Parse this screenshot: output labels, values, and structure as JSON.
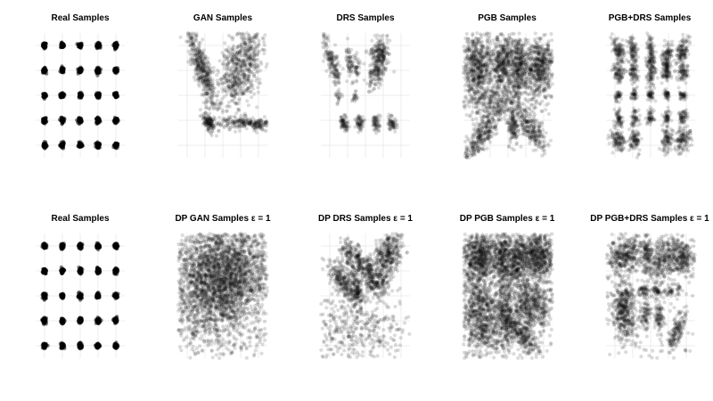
{
  "figure": {
    "background": "#ffffff",
    "point_color": "#000000",
    "grid_color": "#e6e6e6"
  },
  "chart_data": [
    {
      "type": "scatter",
      "title": "Real Samples",
      "grid": true,
      "axis_ticks_visible": false,
      "xlim": [
        -2.5,
        2.5
      ],
      "ylim": [
        -2.5,
        2.5
      ],
      "points": "5x5 grid of tight gaussian clusters at x,y in {-2,-1,0,1,2}",
      "clusters": [
        {
          "x": -2,
          "y": 2,
          "spread": 0.05,
          "n": 60
        },
        {
          "x": -1,
          "y": 2,
          "spread": 0.05,
          "n": 60
        },
        {
          "x": 0,
          "y": 2,
          "spread": 0.05,
          "n": 60
        },
        {
          "x": 1,
          "y": 2,
          "spread": 0.05,
          "n": 60
        },
        {
          "x": 2,
          "y": 2,
          "spread": 0.05,
          "n": 60
        },
        {
          "x": -2,
          "y": 1,
          "spread": 0.05,
          "n": 60
        },
        {
          "x": -1,
          "y": 1,
          "spread": 0.05,
          "n": 60
        },
        {
          "x": 0,
          "y": 1,
          "spread": 0.05,
          "n": 60
        },
        {
          "x": 1,
          "y": 1,
          "spread": 0.05,
          "n": 60
        },
        {
          "x": 2,
          "y": 1,
          "spread": 0.05,
          "n": 60
        },
        {
          "x": -2,
          "y": 0,
          "spread": 0.05,
          "n": 60
        },
        {
          "x": -1,
          "y": 0,
          "spread": 0.05,
          "n": 60
        },
        {
          "x": 0,
          "y": 0,
          "spread": 0.05,
          "n": 60
        },
        {
          "x": 1,
          "y": 0,
          "spread": 0.05,
          "n": 60
        },
        {
          "x": 2,
          "y": 0,
          "spread": 0.05,
          "n": 60
        },
        {
          "x": -2,
          "y": -1,
          "spread": 0.05,
          "n": 60
        },
        {
          "x": -1,
          "y": -1,
          "spread": 0.05,
          "n": 60
        },
        {
          "x": 0,
          "y": -1,
          "spread": 0.05,
          "n": 60
        },
        {
          "x": 1,
          "y": -1,
          "spread": 0.05,
          "n": 60
        },
        {
          "x": 2,
          "y": -1,
          "spread": 0.05,
          "n": 60
        },
        {
          "x": -2,
          "y": -2,
          "spread": 0.05,
          "n": 60
        },
        {
          "x": -1,
          "y": -2,
          "spread": 0.05,
          "n": 60
        },
        {
          "x": 0,
          "y": -2,
          "spread": 0.05,
          "n": 60
        },
        {
          "x": 1,
          "y": -2,
          "spread": 0.05,
          "n": 60
        },
        {
          "x": 2,
          "y": -2,
          "spread": 0.05,
          "n": 60
        }
      ]
    },
    {
      "type": "scatter",
      "title": "GAN Samples",
      "grid": true,
      "axis_ticks_visible": false,
      "xlim": [
        -2.5,
        2.5
      ],
      "ylim": [
        -2.5,
        2.5
      ],
      "clusters": [
        {
          "x": -1.2,
          "y": 1.1,
          "sx": 0.22,
          "sy": 1.0,
          "rot": 0.42,
          "n": 450
        },
        {
          "x": 1.0,
          "y": 1.2,
          "sx": 0.5,
          "sy": 0.95,
          "rot": -0.55,
          "n": 650
        },
        {
          "x": -0.8,
          "y": -1.1,
          "sx": 0.12,
          "sy": 0.22,
          "rot": 0.6,
          "n": 120
        },
        {
          "x": 1.6,
          "y": -1.15,
          "sx": 0.9,
          "sy": 0.12,
          "rot": -0.05,
          "n": 260
        }
      ]
    },
    {
      "type": "scatter",
      "title": "DRS Samples",
      "grid": true,
      "axis_ticks_visible": false,
      "xlim": [
        -2.5,
        2.5
      ],
      "ylim": [
        -2.5,
        2.5
      ],
      "clusters": [
        {
          "x": -2.0,
          "y": 1.6,
          "sx": 0.15,
          "sy": 0.45,
          "rot": 0.4,
          "n": 120
        },
        {
          "x": -1.6,
          "y": 0.8,
          "sx": 0.1,
          "sy": 0.25,
          "rot": 0.2,
          "n": 40
        },
        {
          "x": -0.9,
          "y": 1.3,
          "sx": 0.12,
          "sy": 0.35,
          "rot": 0.2,
          "n": 60
        },
        {
          "x": -0.5,
          "y": 1.1,
          "sx": 0.1,
          "sy": 0.3,
          "rot": 0.1,
          "n": 40
        },
        {
          "x": 0.8,
          "y": 1.7,
          "sx": 0.25,
          "sy": 0.3,
          "rot": -0.5,
          "n": 180
        },
        {
          "x": 0.6,
          "y": 0.9,
          "sx": 0.2,
          "sy": 0.35,
          "rot": -0.6,
          "n": 140
        },
        {
          "x": -1.5,
          "y": -0.1,
          "sx": 0.08,
          "sy": 0.12,
          "rot": 0,
          "n": 20
        },
        {
          "x": -0.6,
          "y": -0.1,
          "sx": 0.08,
          "sy": 0.12,
          "rot": 0,
          "n": 20
        },
        {
          "x": -1.2,
          "y": -1.1,
          "sx": 0.12,
          "sy": 0.15,
          "rot": 0.2,
          "n": 70
        },
        {
          "x": -0.3,
          "y": -1.1,
          "sx": 0.12,
          "sy": 0.15,
          "rot": 0.2,
          "n": 60
        },
        {
          "x": 0.6,
          "y": -1.1,
          "sx": 0.12,
          "sy": 0.15,
          "rot": 0.2,
          "n": 60
        },
        {
          "x": 1.5,
          "y": -1.1,
          "sx": 0.12,
          "sy": 0.15,
          "rot": 0.2,
          "n": 60
        }
      ]
    },
    {
      "type": "scatter",
      "title": "PGB Samples",
      "grid": true,
      "axis_ticks_visible": false,
      "xlim": [
        -2.5,
        2.5
      ],
      "ylim": [
        -2.5,
        2.5
      ],
      "clusters": [
        {
          "x": -1.7,
          "y": 1.1,
          "sx": 0.5,
          "sy": 0.75,
          "rot": 0.1,
          "n": 700
        },
        {
          "x": -0.3,
          "y": 1.2,
          "sx": 0.28,
          "sy": 0.6,
          "rot": 0,
          "n": 400
        },
        {
          "x": 0.6,
          "y": 1.2,
          "sx": 0.28,
          "sy": 0.6,
          "rot": 0,
          "n": 400
        },
        {
          "x": 1.8,
          "y": 1.2,
          "sx": 0.45,
          "sy": 0.6,
          "rot": -0.2,
          "n": 600
        },
        {
          "x": -0.6,
          "y": -0.3,
          "sx": 1.6,
          "sy": 0.35,
          "rot": 0,
          "n": 300
        },
        {
          "x": -1.4,
          "y": -1.5,
          "sx": 1.0,
          "sy": 0.25,
          "rot": 0.8,
          "n": 400
        },
        {
          "x": 1.2,
          "y": -1.3,
          "sx": 0.6,
          "sy": 0.25,
          "rot": -0.8,
          "n": 260
        },
        {
          "x": 0.3,
          "y": -1.3,
          "sx": 0.15,
          "sy": 0.35,
          "rot": 0,
          "n": 120
        }
      ]
    },
    {
      "type": "scatter",
      "title": "PGB+DRS Samples",
      "grid": true,
      "axis_ticks_visible": false,
      "xlim": [
        -2.5,
        2.5
      ],
      "ylim": [
        -2.5,
        2.5
      ],
      "clusters": [
        {
          "x": -1.8,
          "y": 1.8,
          "sx": 0.15,
          "sy": 0.3,
          "rot": 0.4,
          "n": 120
        },
        {
          "x": -1.0,
          "y": 1.8,
          "sx": 0.12,
          "sy": 0.3,
          "rot": 0.2,
          "n": 100
        },
        {
          "x": 0.0,
          "y": 1.3,
          "sx": 0.12,
          "sy": 0.6,
          "rot": 0,
          "n": 200
        },
        {
          "x": 0.9,
          "y": 1.5,
          "sx": 0.15,
          "sy": 0.3,
          "rot": -0.3,
          "n": 120
        },
        {
          "x": 1.8,
          "y": 1.8,
          "sx": 0.15,
          "sy": 0.3,
          "rot": -0.5,
          "n": 120
        },
        {
          "x": -1.8,
          "y": 0.9,
          "sx": 0.15,
          "sy": 0.2,
          "rot": 0.5,
          "n": 80
        },
        {
          "x": -1.0,
          "y": 0.9,
          "sx": 0.12,
          "sy": 0.2,
          "rot": 0.3,
          "n": 70
        },
        {
          "x": 0.9,
          "y": 0.9,
          "sx": 0.12,
          "sy": 0.2,
          "rot": -0.3,
          "n": 70
        },
        {
          "x": 1.8,
          "y": 0.9,
          "sx": 0.15,
          "sy": 0.2,
          "rot": -0.5,
          "n": 80
        },
        {
          "x": -1.8,
          "y": 0.0,
          "sx": 0.1,
          "sy": 0.1,
          "rot": 0,
          "n": 40
        },
        {
          "x": -0.9,
          "y": 0.0,
          "sx": 0.1,
          "sy": 0.1,
          "rot": 0,
          "n": 40
        },
        {
          "x": 0.0,
          "y": 0.0,
          "sx": 0.1,
          "sy": 0.1,
          "rot": 0,
          "n": 40
        },
        {
          "x": 0.9,
          "y": 0.0,
          "sx": 0.1,
          "sy": 0.1,
          "rot": 0,
          "n": 40
        },
        {
          "x": 1.8,
          "y": 0.0,
          "sx": 0.1,
          "sy": 0.1,
          "rot": 0,
          "n": 40
        },
        {
          "x": -1.8,
          "y": -0.9,
          "sx": 0.12,
          "sy": 0.18,
          "rot": 0.3,
          "n": 60
        },
        {
          "x": -0.9,
          "y": -0.9,
          "sx": 0.1,
          "sy": 0.15,
          "rot": 0,
          "n": 50
        },
        {
          "x": 0.0,
          "y": -0.9,
          "sx": 0.1,
          "sy": 0.15,
          "rot": 0,
          "n": 50
        },
        {
          "x": 0.9,
          "y": -0.9,
          "sx": 0.1,
          "sy": 0.15,
          "rot": 0,
          "n": 50
        },
        {
          "x": 1.8,
          "y": -0.9,
          "sx": 0.12,
          "sy": 0.18,
          "rot": -0.3,
          "n": 60
        },
        {
          "x": -1.8,
          "y": -1.8,
          "sx": 0.2,
          "sy": 0.25,
          "rot": 0.6,
          "n": 120
        },
        {
          "x": -0.9,
          "y": -1.8,
          "sx": 0.15,
          "sy": 0.25,
          "rot": 0.3,
          "n": 90
        },
        {
          "x": 0.9,
          "y": -1.8,
          "sx": 0.15,
          "sy": 0.25,
          "rot": -0.3,
          "n": 90
        },
        {
          "x": 1.8,
          "y": -1.8,
          "sx": 0.2,
          "sy": 0.25,
          "rot": -0.6,
          "n": 120
        }
      ]
    },
    {
      "type": "scatter",
      "title": "Real Samples",
      "grid": true,
      "axis_ticks_visible": false,
      "xlim": [
        -2.5,
        2.5
      ],
      "ylim": [
        -2.5,
        2.5
      ],
      "clusters": [
        {
          "x": -2,
          "y": 2,
          "spread": 0.05,
          "n": 60
        },
        {
          "x": -1,
          "y": 2,
          "spread": 0.05,
          "n": 60
        },
        {
          "x": 0,
          "y": 2,
          "spread": 0.05,
          "n": 60
        },
        {
          "x": 1,
          "y": 2,
          "spread": 0.05,
          "n": 60
        },
        {
          "x": 2,
          "y": 2,
          "spread": 0.05,
          "n": 60
        },
        {
          "x": -2,
          "y": 1,
          "spread": 0.05,
          "n": 60
        },
        {
          "x": -1,
          "y": 1,
          "spread": 0.05,
          "n": 60
        },
        {
          "x": 0,
          "y": 1,
          "spread": 0.05,
          "n": 60
        },
        {
          "x": 1,
          "y": 1,
          "spread": 0.05,
          "n": 60
        },
        {
          "x": 2,
          "y": 1,
          "spread": 0.05,
          "n": 60
        },
        {
          "x": -2,
          "y": 0,
          "spread": 0.05,
          "n": 60
        },
        {
          "x": -1,
          "y": 0,
          "spread": 0.05,
          "n": 60
        },
        {
          "x": 0,
          "y": 0,
          "spread": 0.05,
          "n": 60
        },
        {
          "x": 1,
          "y": 0,
          "spread": 0.05,
          "n": 60
        },
        {
          "x": 2,
          "y": 0,
          "spread": 0.05,
          "n": 60
        },
        {
          "x": -2,
          "y": -1,
          "spread": 0.05,
          "n": 60
        },
        {
          "x": -1,
          "y": -1,
          "spread": 0.05,
          "n": 60
        },
        {
          "x": 0,
          "y": -1,
          "spread": 0.05,
          "n": 60
        },
        {
          "x": 1,
          "y": -1,
          "spread": 0.05,
          "n": 60
        },
        {
          "x": 2,
          "y": -1,
          "spread": 0.05,
          "n": 60
        },
        {
          "x": -2,
          "y": -2,
          "spread": 0.05,
          "n": 60
        },
        {
          "x": -1,
          "y": -2,
          "spread": 0.05,
          "n": 60
        },
        {
          "x": 0,
          "y": -2,
          "spread": 0.05,
          "n": 60
        },
        {
          "x": 1,
          "y": -2,
          "spread": 0.05,
          "n": 60
        },
        {
          "x": 2,
          "y": -2,
          "spread": 0.05,
          "n": 60
        }
      ]
    },
    {
      "type": "scatter",
      "title": "DP GAN Samples ε = 1",
      "grid": true,
      "axis_ticks_visible": false,
      "xlim": [
        -2.5,
        2.5
      ],
      "ylim": [
        -2.5,
        2.5
      ],
      "clusters": [
        {
          "x": 0.0,
          "y": 1.2,
          "sx": 1.6,
          "sy": 0.9,
          "rot": 0,
          "n": 2200
        },
        {
          "x": -0.4,
          "y": 0.0,
          "sx": 1.2,
          "sy": 0.8,
          "rot": 0.3,
          "n": 1000
        },
        {
          "x": 0.0,
          "y": -1.3,
          "sx": 1.7,
          "sy": 0.9,
          "rot": 0,
          "n": 350
        }
      ]
    },
    {
      "type": "scatter",
      "title": "DP DRS Samples ε = 1",
      "grid": true,
      "axis_ticks_visible": false,
      "xlim": [
        -2.5,
        2.5
      ],
      "ylim": [
        -2.5,
        2.5
      ],
      "clusters": [
        {
          "x": -0.9,
          "y": 1.6,
          "sx": 0.18,
          "sy": 0.35,
          "rot": 0.5,
          "n": 120
        },
        {
          "x": -0.3,
          "y": 1.4,
          "sx": 0.12,
          "sy": 0.3,
          "rot": 0.3,
          "n": 100
        },
        {
          "x": 0.2,
          "y": 1.1,
          "sx": 0.1,
          "sy": 0.25,
          "rot": 0.2,
          "n": 70
        },
        {
          "x": 1.2,
          "y": 1.6,
          "sx": 0.35,
          "sy": 0.55,
          "rot": -0.6,
          "n": 400
        },
        {
          "x": -1.3,
          "y": 0.6,
          "sx": 0.25,
          "sy": 0.5,
          "rot": 0.7,
          "n": 250
        },
        {
          "x": -0.5,
          "y": 0.3,
          "sx": 0.2,
          "sy": 0.4,
          "rot": 0.2,
          "n": 180
        },
        {
          "x": 0.6,
          "y": 0.5,
          "sx": 0.35,
          "sy": 0.25,
          "rot": -0.3,
          "n": 180
        },
        {
          "x": -0.4,
          "y": -1.4,
          "sx": 1.6,
          "sy": 0.7,
          "rot": 0,
          "n": 420
        }
      ]
    },
    {
      "type": "scatter",
      "title": "DP PGB Samples ε = 1",
      "grid": true,
      "axis_ticks_visible": false,
      "xlim": [
        -2.5,
        2.5
      ],
      "ylim": [
        -2.5,
        2.5
      ],
      "clusters": [
        {
          "x": -1.6,
          "y": 1.6,
          "sx": 0.55,
          "sy": 0.5,
          "rot": 0.2,
          "n": 700
        },
        {
          "x": -0.3,
          "y": 1.5,
          "sx": 0.25,
          "sy": 0.5,
          "rot": 0,
          "n": 300
        },
        {
          "x": 0.5,
          "y": 1.5,
          "sx": 0.25,
          "sy": 0.5,
          "rot": 0,
          "n": 300
        },
        {
          "x": 1.6,
          "y": 1.6,
          "sx": 0.55,
          "sy": 0.5,
          "rot": -0.2,
          "n": 700
        },
        {
          "x": -1.6,
          "y": -0.7,
          "sx": 0.5,
          "sy": 0.9,
          "rot": 0.1,
          "n": 800
        },
        {
          "x": -0.2,
          "y": -0.7,
          "sx": 0.3,
          "sy": 0.8,
          "rot": 0,
          "n": 400
        },
        {
          "x": 1.3,
          "y": -0.4,
          "sx": 0.6,
          "sy": 0.55,
          "rot": -0.1,
          "n": 600
        },
        {
          "x": 0.8,
          "y": -1.6,
          "sx": 0.6,
          "sy": 0.2,
          "rot": -0.6,
          "n": 250
        },
        {
          "x": 0.0,
          "y": 0.0,
          "sx": 2.2,
          "sy": 2.2,
          "rot": 0,
          "n": 500
        }
      ]
    },
    {
      "type": "scatter",
      "title": "DP PGB+DRS Samples ε = 1",
      "grid": true,
      "axis_ticks_visible": false,
      "xlim": [
        -2.5,
        2.5
      ],
      "ylim": [
        -2.5,
        2.5
      ],
      "clusters": [
        {
          "x": -1.4,
          "y": 1.6,
          "sx": 0.55,
          "sy": 0.35,
          "rot": 0.2,
          "n": 380
        },
        {
          "x": -0.2,
          "y": 1.6,
          "sx": 0.15,
          "sy": 0.35,
          "rot": 0,
          "n": 120
        },
        {
          "x": 0.6,
          "y": 1.4,
          "sx": 0.3,
          "sy": 0.45,
          "rot": -0.4,
          "n": 200
        },
        {
          "x": 1.6,
          "y": 1.6,
          "sx": 0.5,
          "sy": 0.35,
          "rot": -0.3,
          "n": 350
        },
        {
          "x": -0.4,
          "y": 0.2,
          "sx": 0.15,
          "sy": 0.12,
          "rot": 0,
          "n": 50
        },
        {
          "x": 0.4,
          "y": 0.2,
          "sx": 0.15,
          "sy": 0.12,
          "rot": 0,
          "n": 50
        },
        {
          "x": 1.2,
          "y": 0.2,
          "sx": 0.2,
          "sy": 0.12,
          "rot": 0,
          "n": 50
        },
        {
          "x": -1.5,
          "y": -0.6,
          "sx": 0.35,
          "sy": 0.6,
          "rot": 0.1,
          "n": 450
        },
        {
          "x": -0.3,
          "y": -0.7,
          "sx": 0.12,
          "sy": 0.3,
          "rot": 0,
          "n": 80
        },
        {
          "x": 0.5,
          "y": -0.8,
          "sx": 0.12,
          "sy": 0.3,
          "rot": 0,
          "n": 80
        },
        {
          "x": 1.5,
          "y": -1.4,
          "sx": 0.15,
          "sy": 0.45,
          "rot": -0.5,
          "n": 150
        },
        {
          "x": 0.0,
          "y": 0.0,
          "sx": 2.0,
          "sy": 2.0,
          "rot": 0,
          "n": 260
        }
      ]
    }
  ]
}
